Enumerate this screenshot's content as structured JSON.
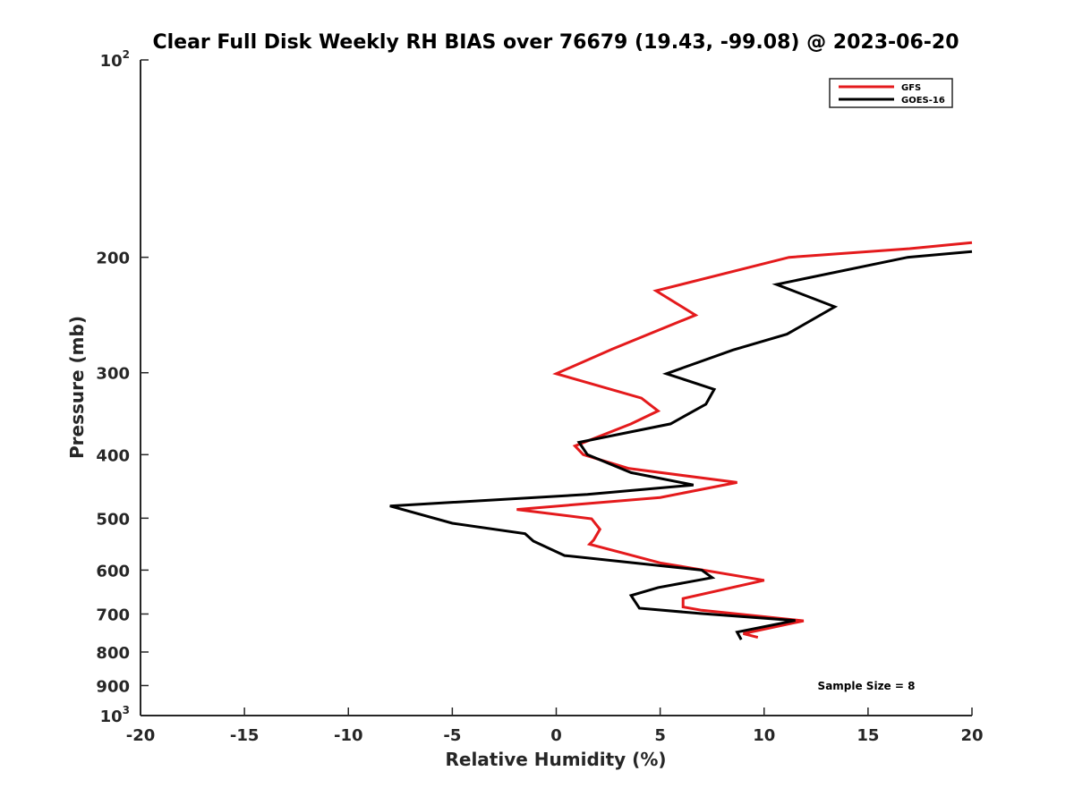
{
  "chart_data": {
    "type": "line",
    "title": "Clear Full Disk Weekly RH BIAS over 76679 (19.43, -99.08) @ 2023-06-20",
    "xlabel": "Relative Humidity (%)",
    "ylabel": "Pressure (mb)",
    "xlim": [
      -20,
      20
    ],
    "ylim": [
      100,
      1000
    ],
    "y_scale": "log",
    "y_reversed": true,
    "grid": false,
    "legend_position": "top-right",
    "x_ticks": [
      -20,
      -15,
      -10,
      -5,
      0,
      5,
      10,
      15,
      20
    ],
    "y_ticks": [
      {
        "value": 100,
        "label": "10",
        "exp": "2"
      },
      {
        "value": 200,
        "label": "200"
      },
      {
        "value": 300,
        "label": "300"
      },
      {
        "value": 400,
        "label": "400"
      },
      {
        "value": 500,
        "label": "500"
      },
      {
        "value": 600,
        "label": "600"
      },
      {
        "value": 700,
        "label": "700"
      },
      {
        "value": 800,
        "label": "800"
      },
      {
        "value": 900,
        "label": "900"
      },
      {
        "value": 1000,
        "label": "10",
        "exp": "3"
      }
    ],
    "series": [
      {
        "name": "GFS",
        "color": "#e41a1c",
        "points": [
          [
            20.0,
            190
          ],
          [
            17.0,
            194
          ],
          [
            11.2,
            200
          ],
          [
            4.8,
            225
          ],
          [
            6.7,
            245
          ],
          [
            2.7,
            276
          ],
          [
            0.0,
            301
          ],
          [
            4.1,
            328
          ],
          [
            4.9,
            343
          ],
          [
            3.6,
            359
          ],
          [
            0.9,
            388
          ],
          [
            1.3,
            400
          ],
          [
            3.5,
            420
          ],
          [
            8.7,
            441
          ],
          [
            5.0,
            465
          ],
          [
            -1.9,
            485
          ],
          [
            1.7,
            501
          ],
          [
            2.1,
            520
          ],
          [
            1.8,
            540
          ],
          [
            1.6,
            548
          ],
          [
            3.3,
            566
          ],
          [
            5.0,
            585
          ],
          [
            10.0,
            622
          ],
          [
            6.1,
            663
          ],
          [
            6.1,
            683
          ],
          [
            7.0,
            691
          ],
          [
            11.9,
            717
          ],
          [
            9.0,
            750
          ],
          [
            9.7,
            760
          ]
        ]
      },
      {
        "name": "GOES-16",
        "color": "#000000",
        "points": [
          [
            20.0,
            196
          ],
          [
            16.9,
            200
          ],
          [
            10.6,
            220
          ],
          [
            13.4,
            238
          ],
          [
            11.1,
            262
          ],
          [
            8.5,
            277
          ],
          [
            5.3,
            301
          ],
          [
            7.6,
            318
          ],
          [
            7.2,
            335
          ],
          [
            5.5,
            359
          ],
          [
            1.1,
            383
          ],
          [
            1.5,
            400
          ],
          [
            3.6,
            426
          ],
          [
            6.6,
            445
          ],
          [
            1.5,
            460
          ],
          [
            -8.0,
            479
          ],
          [
            -5.0,
            509
          ],
          [
            -1.5,
            528
          ],
          [
            -1.1,
            542
          ],
          [
            0.4,
            570
          ],
          [
            7.0,
            600
          ],
          [
            7.5,
            616
          ],
          [
            4.9,
            638
          ],
          [
            3.6,
            656
          ],
          [
            4.0,
            686
          ],
          [
            7.0,
            699
          ],
          [
            11.5,
            716
          ],
          [
            8.7,
            746
          ],
          [
            8.9,
            766
          ]
        ]
      }
    ],
    "annotation": "Sample Size = 8"
  }
}
